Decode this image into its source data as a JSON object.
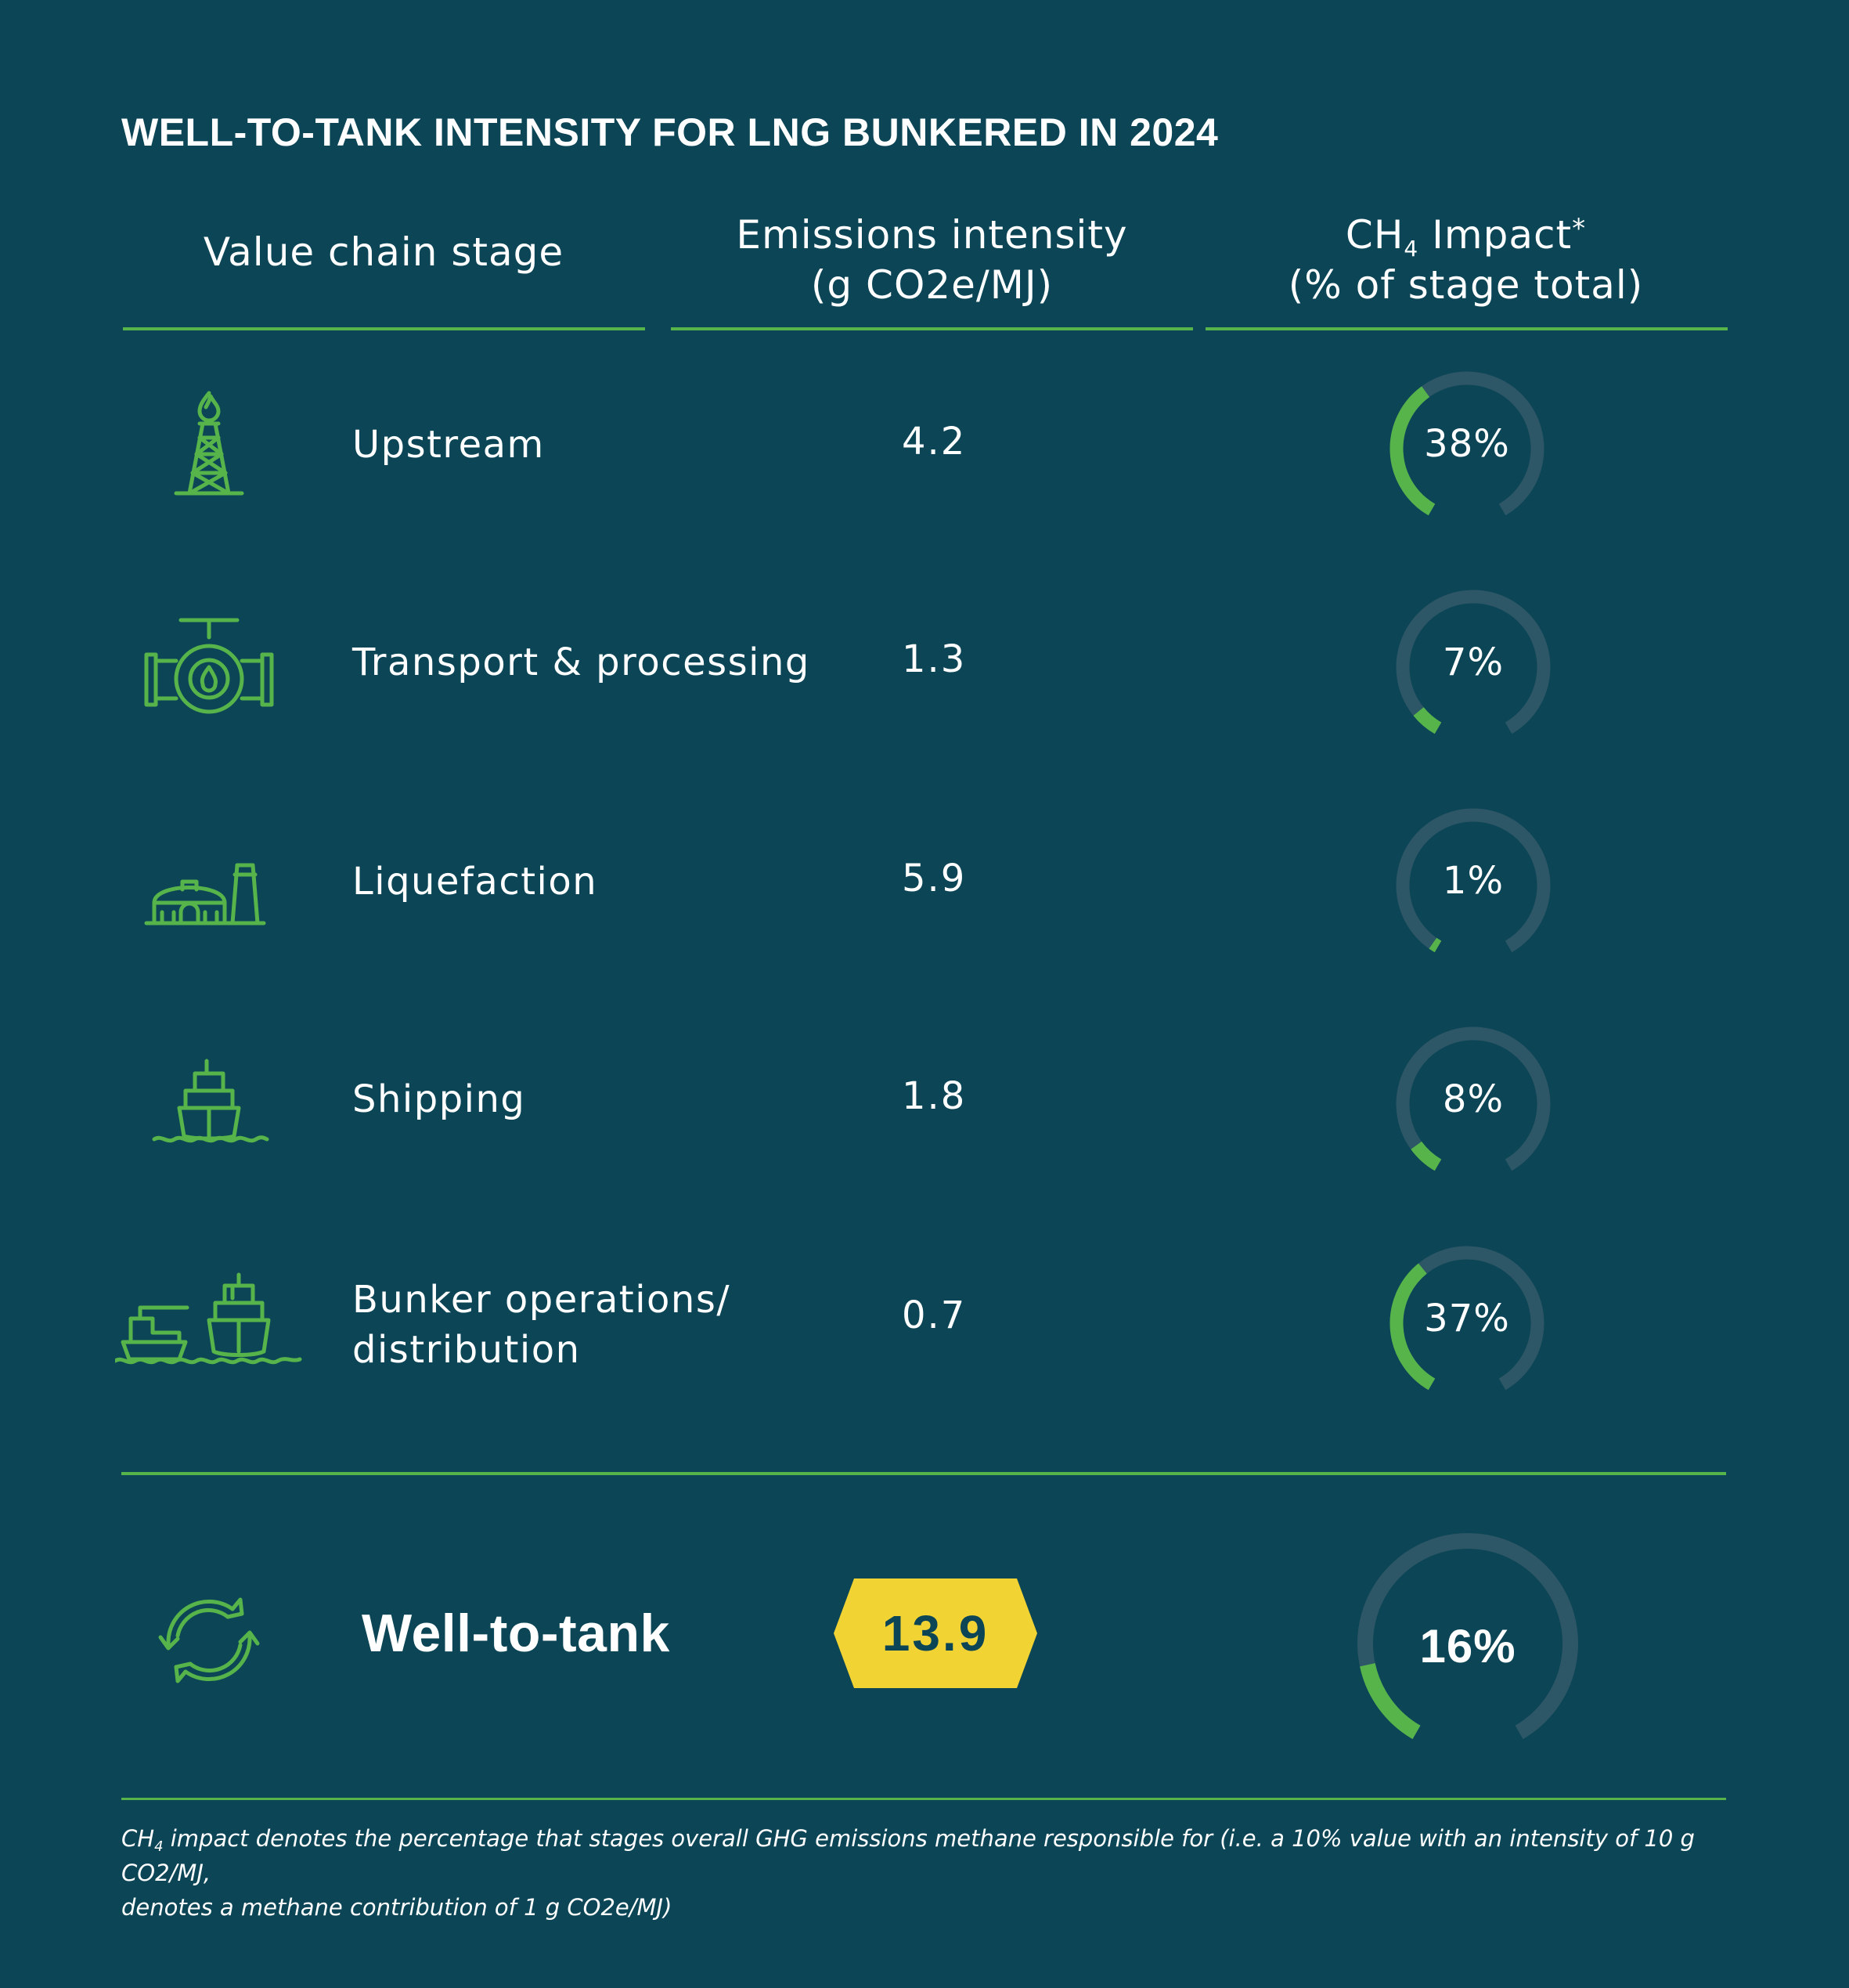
{
  "title": "WELL-TO-TANK INTENSITY FOR LNG BUNKERED IN 2024",
  "headers": {
    "stage": "Value chain stage",
    "intensity_line1": "Emissions intensity",
    "intensity_line2": "(g CO2e/MJ)",
    "ch4_prefix": "CH",
    "ch4_sub": "4",
    "ch4_suffix": " Impact",
    "ch4_star": "*",
    "ch4_line2": "(% of stage total)"
  },
  "colors": {
    "background": "#0b4556",
    "accent_green": "#57b44a",
    "ring_track": "#2d5666",
    "badge_yellow": "#f1d334"
  },
  "chart_data": {
    "type": "table",
    "title": "WELL-TO-TANK INTENSITY FOR LNG BUNKERED IN 2024",
    "columns": [
      "Value chain stage",
      "Emissions intensity (g CO2e/MJ)",
      "CH4 Impact* (% of stage total)"
    ],
    "rows": [
      {
        "icon": "oil-derrick-icon",
        "stage": "Upstream",
        "stage_lines": [
          "Upstream"
        ],
        "intensity": "4.2",
        "ch4_pct": 38,
        "ch4_label": "38%"
      },
      {
        "icon": "pipeline-valve-icon",
        "stage": "Transport & processing",
        "stage_lines": [
          "Transport & processing"
        ],
        "intensity": "1.3",
        "ch4_pct": 7,
        "ch4_label": "7%"
      },
      {
        "icon": "liquefaction-plant-icon",
        "stage": "Liquefaction",
        "stage_lines": [
          "Liquefaction"
        ],
        "intensity": "5.9",
        "ch4_pct": 1,
        "ch4_label": "1%"
      },
      {
        "icon": "ship-icon",
        "stage": "Shipping",
        "stage_lines": [
          "Shipping"
        ],
        "intensity": "1.8",
        "ch4_pct": 8,
        "ch4_label": "8%"
      },
      {
        "icon": "bunkering-ships-icon",
        "stage": "Bunker operations/ distribution",
        "stage_lines": [
          "Bunker operations/",
          "distribution"
        ],
        "intensity": "0.7",
        "ch4_pct": 37,
        "ch4_label": "37%"
      }
    ],
    "total": {
      "icon": "cycle-arrows-icon",
      "stage": "Well-to-tank",
      "intensity": "13.9",
      "ch4_pct": 16,
      "ch4_label": "16%"
    }
  },
  "footnote": {
    "prefix": "CH",
    "sub": "4",
    "line1": " impact denotes the percentage that stages overall GHG emissions methane responsible for (i.e. a 10% value with an intensity of 10 g CO2/MJ,",
    "line2": "denotes a methane contribution of 1 g CO2e/MJ)"
  }
}
